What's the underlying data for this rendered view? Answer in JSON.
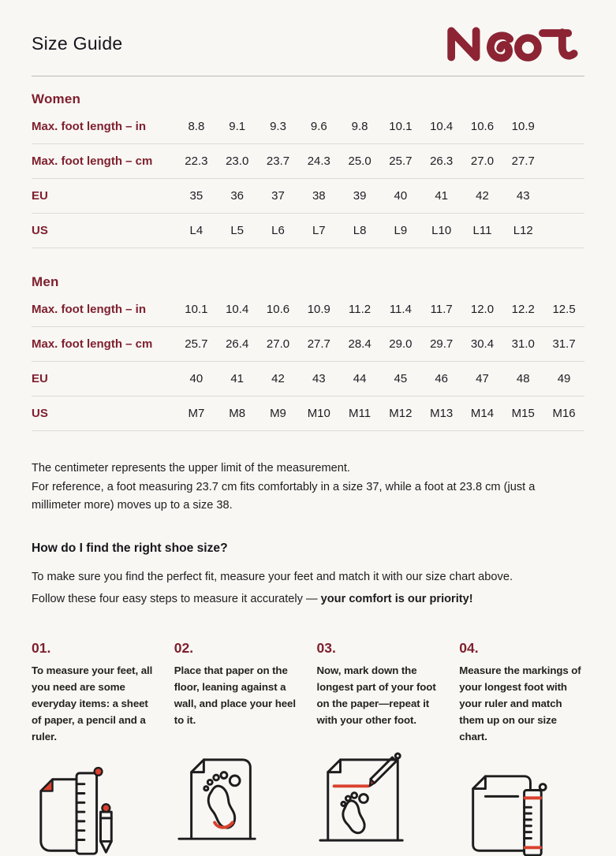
{
  "page": {
    "title": "Size Guide",
    "brand": "Naot"
  },
  "colors": {
    "maroon": "#7f202e",
    "logo": "#8c2433",
    "accent": "#d9412d",
    "background": "#f8f7f4",
    "ink": "#1d1d1d",
    "rule": "#bcb9b4",
    "row_line": "#dedbd5"
  },
  "women": {
    "section": "Women",
    "columns": 10,
    "rows": [
      {
        "label": "Max. foot length – in",
        "values": [
          "8.8",
          "9.1",
          "9.3",
          "9.6",
          "9.8",
          "10.1",
          "10.4",
          "10.6",
          "10.9"
        ]
      },
      {
        "label": "Max. foot length – cm",
        "values": [
          "22.3",
          "23.0",
          "23.7",
          "24.3",
          "25.0",
          "25.7",
          "26.3",
          "27.0",
          "27.7"
        ]
      },
      {
        "label": "EU",
        "values": [
          "35",
          "36",
          "37",
          "38",
          "39",
          "40",
          "41",
          "42",
          "43"
        ]
      },
      {
        "label": "US",
        "values": [
          "L4",
          "L5",
          "L6",
          "L7",
          "L8",
          "L9",
          "L10",
          "L11",
          "L12"
        ]
      }
    ]
  },
  "men": {
    "section": "Men",
    "columns": 10,
    "rows": [
      {
        "label": "Max. foot length – in",
        "values": [
          "10.1",
          "10.4",
          "10.6",
          "10.9",
          "11.2",
          "11.4",
          "11.7",
          "12.0",
          "12.2",
          "12.5"
        ]
      },
      {
        "label": "Max. foot length – cm",
        "values": [
          "25.7",
          "26.4",
          "27.0",
          "27.7",
          "28.4",
          "29.0",
          "29.7",
          "30.4",
          "31.0",
          "31.7"
        ]
      },
      {
        "label": "EU",
        "values": [
          "40",
          "41",
          "42",
          "43",
          "44",
          "45",
          "46",
          "47",
          "48",
          "49"
        ]
      },
      {
        "label": "US",
        "values": [
          "M7",
          "M8",
          "M9",
          "M10",
          "M11",
          "M12",
          "M13",
          "M14",
          "M15",
          "M16"
        ]
      }
    ]
  },
  "notes": {
    "line1": "The centimeter represents the upper limit of the measurement.",
    "line2": "For reference, a foot measuring 23.7 cm fits comfortably in a size 37, while a foot at 23.8 cm (just a millimeter more) moves up to a size 38."
  },
  "how_to": {
    "heading": "How do I find the right shoe size?",
    "intro": "To make sure you find the perfect fit, measure your feet and match it with our size chart above. Follow these four easy steps to measure it accurately — ",
    "intro_bold": "your comfort is our priority!"
  },
  "steps": [
    {
      "number": "01.",
      "text": "To measure your feet, all you need are some everyday items: a sheet of paper, a pencil and a ruler.",
      "icon": "paper-ruler-pencil-icon"
    },
    {
      "number": "02.",
      "text": "Place that paper on the floor, leaning against a wall, and place your heel to it.",
      "icon": "paper-heel-footprint-icon"
    },
    {
      "number": "03.",
      "text": "Now, mark down the longest part of your foot on the paper—repeat it with your other foot.",
      "icon": "mark-foot-pencil-icon"
    },
    {
      "number": "04.",
      "text": "Measure the markings of your longest foot with your ruler and match them up on our size chart.",
      "icon": "measure-markings-ruler-icon"
    }
  ]
}
